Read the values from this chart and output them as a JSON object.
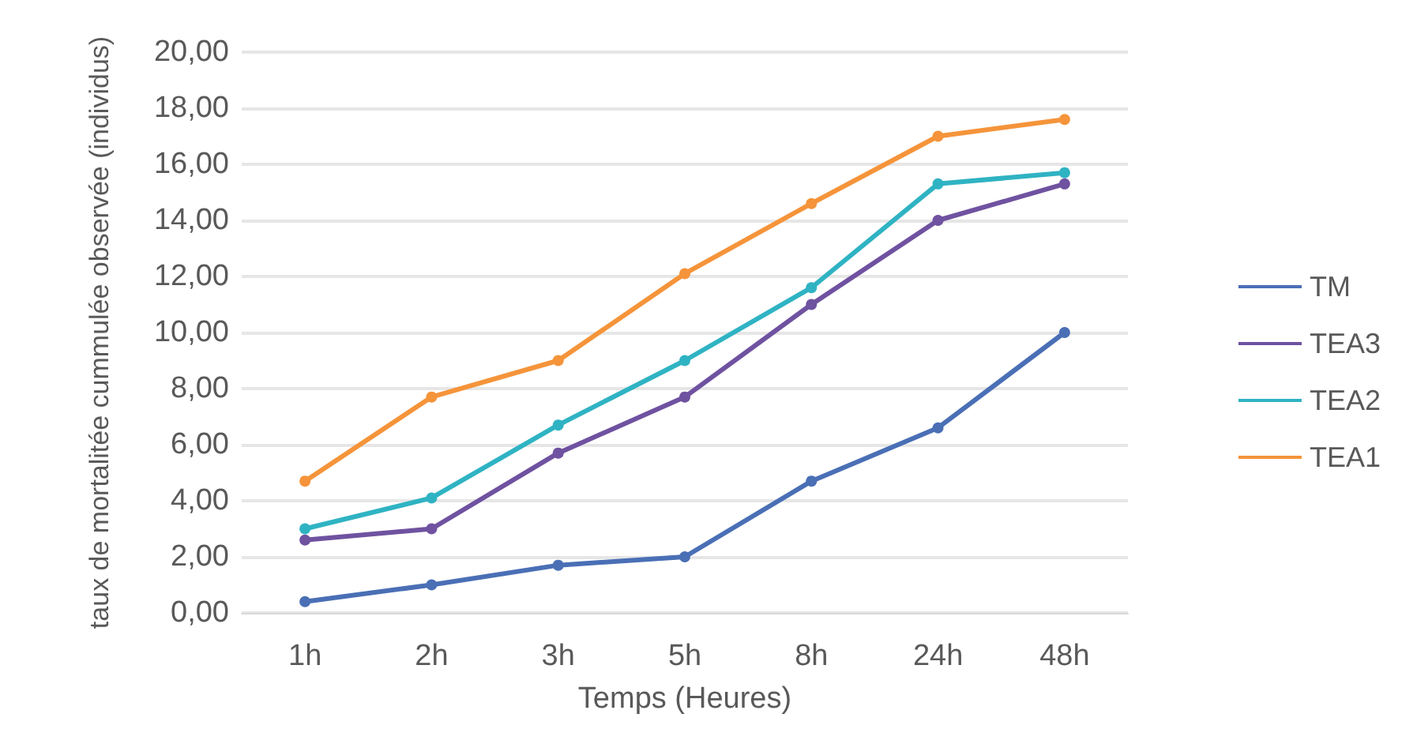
{
  "chart_data": {
    "type": "line",
    "xlabel": "Temps (Heures)",
    "ylabel": "taux de mortalitée cummulée observée (individus)",
    "categories": [
      "1h",
      "2h",
      "3h",
      "5h",
      "8h",
      "24h",
      "48h"
    ],
    "series": [
      {
        "name": "TM",
        "color": "#4a6fb5",
        "values": [
          0.4,
          1.0,
          1.7,
          2.0,
          4.7,
          6.6,
          10.0
        ]
      },
      {
        "name": "TEA3",
        "color": "#6f52a0",
        "values": [
          2.6,
          3.0,
          5.7,
          7.7,
          11.0,
          14.0,
          15.3
        ]
      },
      {
        "name": "TEA2",
        "color": "#2fb3c3",
        "values": [
          3.0,
          4.1,
          6.7,
          9.0,
          11.6,
          15.3,
          15.7
        ]
      },
      {
        "name": "TEA1",
        "color": "#f5943a",
        "values": [
          4.7,
          7.7,
          9.0,
          12.1,
          14.6,
          17.0,
          17.6
        ]
      }
    ],
    "ylim": [
      0,
      20
    ],
    "yticks": [
      {
        "value": 0,
        "label": "0,00"
      },
      {
        "value": 2,
        "label": "2,00"
      },
      {
        "value": 4,
        "label": "4,00"
      },
      {
        "value": 6,
        "label": "6,00"
      },
      {
        "value": 8,
        "label": "8,00"
      },
      {
        "value": 10,
        "label": "10,00"
      },
      {
        "value": 12,
        "label": "12,00"
      },
      {
        "value": 14,
        "label": "14,00"
      },
      {
        "value": 16,
        "label": "16,00"
      },
      {
        "value": 18,
        "label": "18,00"
      },
      {
        "value": 20,
        "label": "20,00"
      }
    ],
    "grid": "y",
    "legend": "right",
    "marker": "circle",
    "line_style": "solid"
  }
}
